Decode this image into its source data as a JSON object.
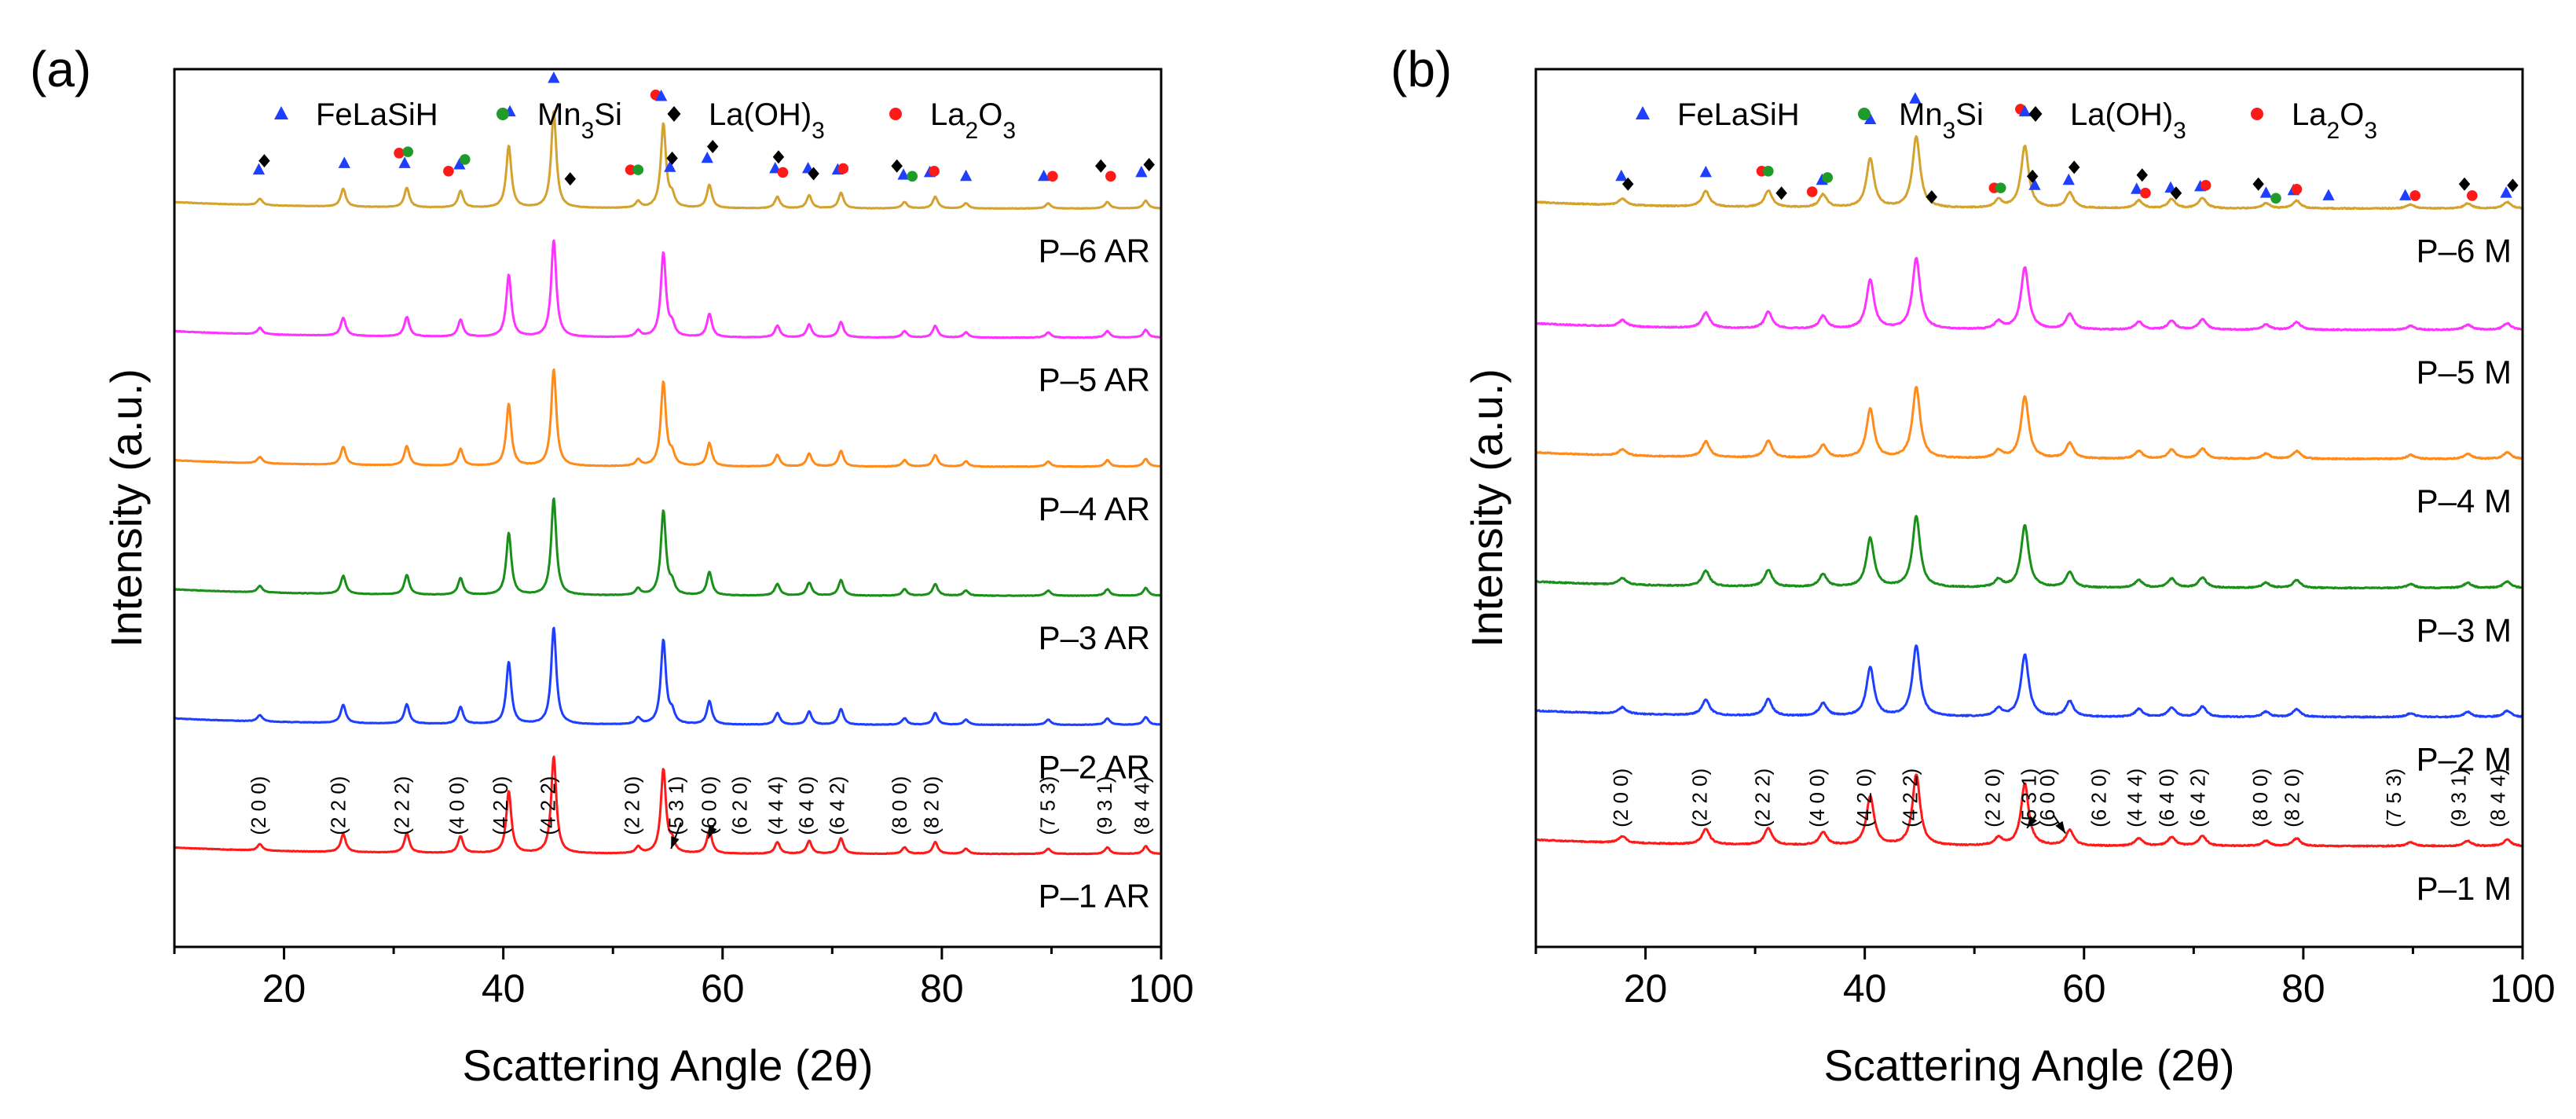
{
  "chart_data": [
    {
      "type": "line",
      "panel_label": "(a)",
      "xlabel": "Scattering Angle (2θ)",
      "ylabel": "Intensity (a.u.)",
      "xlim": [
        10,
        100
      ],
      "ylim": [
        0,
        6.8
      ],
      "xticks": [
        20,
        40,
        60,
        80,
        100
      ],
      "yticks": [],
      "peak_width": 0.28,
      "noise": 0.004,
      "legend": [
        {
          "symbol": "triangle",
          "color": "#1f3fff",
          "label": "FeLaSiH"
        },
        {
          "symbol": "circle",
          "color": "#1f9b2a",
          "label": "Mn3Si"
        },
        {
          "symbol": "diamond",
          "color": "#000000",
          "label": "La(OH)3"
        },
        {
          "symbol": "circle",
          "color": "#ff1a1a",
          "label": "La2O3"
        }
      ],
      "series": [
        {
          "name": "P–1 AR",
          "color": "#ff1a1a",
          "offset": 0.72
        },
        {
          "name": "P–2 AR",
          "color": "#1f3fff",
          "offset": 1.72
        },
        {
          "name": "P–3 AR",
          "color": "#1a8f1a",
          "offset": 2.72
        },
        {
          "name": "P–4 AR",
          "color": "#ff8c1a",
          "offset": 3.72
        },
        {
          "name": "P–5 AR",
          "color": "#ff33ff",
          "offset": 4.72
        },
        {
          "name": "P–6 AR",
          "color": "#d4a22e",
          "offset": 5.72
        }
      ],
      "peaks": [
        {
          "x": 17.8,
          "h": 0.05
        },
        {
          "x": 25.4,
          "h": 0.14
        },
        {
          "x": 31.2,
          "h": 0.15
        },
        {
          "x": 36.1,
          "h": 0.13
        },
        {
          "x": 40.5,
          "h": 0.48
        },
        {
          "x": 44.6,
          "h": 0.75
        },
        {
          "x": 52.3,
          "h": 0.05
        },
        {
          "x": 54.6,
          "h": 0.65
        },
        {
          "x": 55.4,
          "h": 0.08
        },
        {
          "x": 58.8,
          "h": 0.18
        },
        {
          "x": 65.0,
          "h": 0.09
        },
        {
          "x": 67.9,
          "h": 0.1
        },
        {
          "x": 70.8,
          "h": 0.12
        },
        {
          "x": 76.6,
          "h": 0.05
        },
        {
          "x": 79.4,
          "h": 0.09
        },
        {
          "x": 82.2,
          "h": 0.04
        },
        {
          "x": 89.7,
          "h": 0.04
        },
        {
          "x": 95.1,
          "h": 0.05
        },
        {
          "x": 98.6,
          "h": 0.06
        }
      ],
      "phase_markers": [
        {
          "x": 17.7,
          "y": 6.02,
          "phase": "FeLaSiH"
        },
        {
          "x": 18.2,
          "y": 6.09,
          "phase": "La(OH)3"
        },
        {
          "x": 25.5,
          "y": 6.07,
          "phase": "FeLaSiH"
        },
        {
          "x": 30.5,
          "y": 6.15,
          "phase": "La2O3"
        },
        {
          "x": 31.3,
          "y": 6.16,
          "phase": "Mn3Si"
        },
        {
          "x": 31.0,
          "y": 6.07,
          "phase": "FeLaSiH"
        },
        {
          "x": 35.0,
          "y": 6.01,
          "phase": "La2O3"
        },
        {
          "x": 36.0,
          "y": 6.06,
          "phase": "FeLaSiH"
        },
        {
          "x": 36.5,
          "y": 6.1,
          "phase": "Mn3Si"
        },
        {
          "x": 40.6,
          "y": 6.47,
          "phase": "FeLaSiH"
        },
        {
          "x": 44.6,
          "y": 6.73,
          "phase": "FeLaSiH"
        },
        {
          "x": 46.1,
          "y": 5.95,
          "phase": "La(OH)3"
        },
        {
          "x": 51.6,
          "y": 6.02,
          "phase": "La2O3"
        },
        {
          "x": 52.3,
          "y": 6.02,
          "phase": "Mn3Si"
        },
        {
          "x": 53.9,
          "y": 6.6,
          "phase": "La2O3"
        },
        {
          "x": 54.4,
          "y": 6.59,
          "phase": "FeLaSiH"
        },
        {
          "x": 55.2,
          "y": 6.04,
          "phase": "FeLaSiH"
        },
        {
          "x": 55.4,
          "y": 6.11,
          "phase": "La(OH)3"
        },
        {
          "x": 58.6,
          "y": 6.11,
          "phase": "FeLaSiH"
        },
        {
          "x": 59.1,
          "y": 6.2,
          "phase": "La(OH)3"
        },
        {
          "x": 64.8,
          "y": 6.03,
          "phase": "FeLaSiH"
        },
        {
          "x": 65.1,
          "y": 6.12,
          "phase": "La(OH)3"
        },
        {
          "x": 65.5,
          "y": 6.0,
          "phase": "La2O3"
        },
        {
          "x": 67.8,
          "y": 6.03,
          "phase": "FeLaSiH"
        },
        {
          "x": 68.3,
          "y": 5.99,
          "phase": "La(OH)3"
        },
        {
          "x": 70.5,
          "y": 6.02,
          "phase": "FeLaSiH"
        },
        {
          "x": 71.0,
          "y": 6.03,
          "phase": "La2O3"
        },
        {
          "x": 75.9,
          "y": 6.05,
          "phase": "La(OH)3"
        },
        {
          "x": 76.5,
          "y": 5.98,
          "phase": "FeLaSiH"
        },
        {
          "x": 77.3,
          "y": 5.97,
          "phase": "Mn3Si"
        },
        {
          "x": 78.9,
          "y": 6.0,
          "phase": "FeLaSiH"
        },
        {
          "x": 79.3,
          "y": 6.01,
          "phase": "La2O3"
        },
        {
          "x": 82.2,
          "y": 5.97,
          "phase": "FeLaSiH"
        },
        {
          "x": 89.3,
          "y": 5.97,
          "phase": "FeLaSiH"
        },
        {
          "x": 90.1,
          "y": 5.97,
          "phase": "La2O3"
        },
        {
          "x": 94.5,
          "y": 6.05,
          "phase": "La(OH)3"
        },
        {
          "x": 95.4,
          "y": 5.97,
          "phase": "La2O3"
        },
        {
          "x": 98.2,
          "y": 6.0,
          "phase": "FeLaSiH"
        },
        {
          "x": 98.9,
          "y": 6.06,
          "phase": "La(OH)3"
        }
      ],
      "hkl_labels": [
        {
          "x": 18.3,
          "text": "(2 0 0)"
        },
        {
          "x": 25.6,
          "text": "(2 2 0)"
        },
        {
          "x": 31.4,
          "text": "(2 2 2)"
        },
        {
          "x": 36.4,
          "text": "(4 0 0)"
        },
        {
          "x": 40.4,
          "text": "(4 2 0)"
        },
        {
          "x": 44.7,
          "text": "(4 2 2)"
        },
        {
          "x": 52.4,
          "text": "(2 2 0)"
        },
        {
          "x": 56.4,
          "text": "(5 3 1)"
        },
        {
          "x": 59.4,
          "text": "(6 0 0)"
        },
        {
          "x": 62.2,
          "text": "(6 2 0)"
        },
        {
          "x": 65.5,
          "text": "(4 4 4)"
        },
        {
          "x": 68.3,
          "text": "(6 4 0)"
        },
        {
          "x": 71.1,
          "text": "(6 4 2)"
        },
        {
          "x": 76.8,
          "text": "(8 0 0)"
        },
        {
          "x": 79.7,
          "text": "(8 2 0)"
        },
        {
          "x": 90.3,
          "text": "(7 5 3)"
        },
        {
          "x": 95.5,
          "text": "(9 3 1)"
        },
        {
          "x": 98.9,
          "text": "(8 4 4)"
        }
      ]
    },
    {
      "type": "line",
      "panel_label": "(b)",
      "xlabel": "Scattering Angle (2θ)",
      "ylabel": "Intensity (a.u.)",
      "xlim": [
        10,
        100
      ],
      "ylim": [
        0,
        6.8
      ],
      "xticks": [
        20,
        40,
        60,
        80,
        100
      ],
      "yticks": [],
      "peak_width": 0.42,
      "noise": 0.008,
      "legend": [
        {
          "symbol": "triangle",
          "color": "#1f3fff",
          "label": "FeLaSiH"
        },
        {
          "symbol": "circle",
          "color": "#1f9b2a",
          "label": "Mn3Si"
        },
        {
          "symbol": "diamond",
          "color": "#000000",
          "label": "La(OH)3"
        },
        {
          "symbol": "circle",
          "color": "#ff1a1a",
          "label": "La2O3"
        }
      ],
      "series": [
        {
          "name": "P–1 M",
          "color": "#ff1a1a",
          "offset": 0.78
        },
        {
          "name": "P–2 M",
          "color": "#1f3fff",
          "offset": 1.78
        },
        {
          "name": "P–3 M",
          "color": "#1a8f1a",
          "offset": 2.78
        },
        {
          "name": "P–4 M",
          "color": "#ff8c1a",
          "offset": 3.78
        },
        {
          "name": "P–5 M",
          "color": "#ff33ff",
          "offset": 4.78
        },
        {
          "name": "P–6 M",
          "color": "#d4a22e",
          "offset": 5.72
        }
      ],
      "peaks": [
        {
          "x": 17.9,
          "h": 0.05
        },
        {
          "x": 25.5,
          "h": 0.12
        },
        {
          "x": 31.2,
          "h": 0.13
        },
        {
          "x": 36.2,
          "h": 0.1
        },
        {
          "x": 40.5,
          "h": 0.38
        },
        {
          "x": 44.7,
          "h": 0.55
        },
        {
          "x": 52.2,
          "h": 0.06
        },
        {
          "x": 54.6,
          "h": 0.48
        },
        {
          "x": 58.7,
          "h": 0.12
        },
        {
          "x": 65.0,
          "h": 0.06
        },
        {
          "x": 68.0,
          "h": 0.07
        },
        {
          "x": 70.8,
          "h": 0.08
        },
        {
          "x": 76.6,
          "h": 0.04
        },
        {
          "x": 79.4,
          "h": 0.06
        },
        {
          "x": 89.8,
          "h": 0.03
        },
        {
          "x": 95.0,
          "h": 0.04
        },
        {
          "x": 98.6,
          "h": 0.05
        }
      ],
      "phase_markers": [
        {
          "x": 17.8,
          "y": 5.97,
          "phase": "FeLaSiH"
        },
        {
          "x": 18.4,
          "y": 5.91,
          "phase": "La(OH)3"
        },
        {
          "x": 25.5,
          "y": 6.0,
          "phase": "FeLaSiH"
        },
        {
          "x": 30.6,
          "y": 6.01,
          "phase": "La2O3"
        },
        {
          "x": 31.2,
          "y": 6.01,
          "phase": "Mn3Si"
        },
        {
          "x": 32.4,
          "y": 5.84,
          "phase": "La(OH)3"
        },
        {
          "x": 35.2,
          "y": 5.85,
          "phase": "La2O3"
        },
        {
          "x": 36.1,
          "y": 5.94,
          "phase": "FeLaSiH"
        },
        {
          "x": 36.6,
          "y": 5.96,
          "phase": "Mn3Si"
        },
        {
          "x": 40.5,
          "y": 6.41,
          "phase": "FeLaSiH"
        },
        {
          "x": 44.6,
          "y": 6.57,
          "phase": "FeLaSiH"
        },
        {
          "x": 46.1,
          "y": 5.81,
          "phase": "La(OH)3"
        },
        {
          "x": 51.8,
          "y": 5.88,
          "phase": "La2O3"
        },
        {
          "x": 52.4,
          "y": 5.88,
          "phase": "Mn3Si"
        },
        {
          "x": 54.2,
          "y": 6.49,
          "phase": "La2O3"
        },
        {
          "x": 54.6,
          "y": 6.47,
          "phase": "FeLaSiH"
        },
        {
          "x": 55.5,
          "y": 5.9,
          "phase": "FeLaSiH"
        },
        {
          "x": 55.3,
          "y": 5.97,
          "phase": "La(OH)3"
        },
        {
          "x": 58.6,
          "y": 5.94,
          "phase": "FeLaSiH"
        },
        {
          "x": 59.1,
          "y": 6.04,
          "phase": "La(OH)3"
        },
        {
          "x": 64.8,
          "y": 5.87,
          "phase": "FeLaSiH"
        },
        {
          "x": 65.3,
          "y": 5.98,
          "phase": "La(OH)3"
        },
        {
          "x": 65.6,
          "y": 5.84,
          "phase": "La2O3"
        },
        {
          "x": 67.9,
          "y": 5.88,
          "phase": "FeLaSiH"
        },
        {
          "x": 68.4,
          "y": 5.84,
          "phase": "La(OH)3"
        },
        {
          "x": 70.6,
          "y": 5.89,
          "phase": "FeLaSiH"
        },
        {
          "x": 71.1,
          "y": 5.9,
          "phase": "La2O3"
        },
        {
          "x": 75.9,
          "y": 5.91,
          "phase": "La(OH)3"
        },
        {
          "x": 76.6,
          "y": 5.84,
          "phase": "FeLaSiH"
        },
        {
          "x": 77.5,
          "y": 5.8,
          "phase": "Mn3Si"
        },
        {
          "x": 79.1,
          "y": 5.86,
          "phase": "FeLaSiH"
        },
        {
          "x": 79.4,
          "y": 5.87,
          "phase": "La2O3"
        },
        {
          "x": 82.3,
          "y": 5.82,
          "phase": "FeLaSiH"
        },
        {
          "x": 89.3,
          "y": 5.82,
          "phase": "FeLaSiH"
        },
        {
          "x": 90.2,
          "y": 5.82,
          "phase": "La2O3"
        },
        {
          "x": 94.7,
          "y": 5.91,
          "phase": "La(OH)3"
        },
        {
          "x": 95.4,
          "y": 5.82,
          "phase": "La2O3"
        },
        {
          "x": 98.5,
          "y": 5.84,
          "phase": "FeLaSiH"
        },
        {
          "x": 99.1,
          "y": 5.9,
          "phase": "La(OH)3"
        }
      ],
      "hkl_labels": [
        {
          "x": 18.4,
          "text": "(2 0 0)"
        },
        {
          "x": 25.6,
          "text": "(2 2 0)"
        },
        {
          "x": 31.3,
          "text": "(2 2 2)"
        },
        {
          "x": 36.3,
          "text": "(4 0 0)"
        },
        {
          "x": 40.6,
          "text": "(4 2 0)"
        },
        {
          "x": 44.8,
          "text": "(4 2 2)"
        },
        {
          "x": 52.3,
          "text": "(2 2 0)"
        },
        {
          "x": 55.6,
          "text": "(5 3 1)"
        },
        {
          "x": 57.3,
          "text": "(6 0 0)"
        },
        {
          "x": 62.0,
          "text": "(6 2 0)"
        },
        {
          "x": 65.3,
          "text": "(4 4 4)"
        },
        {
          "x": 68.2,
          "text": "(6 4 0)"
        },
        {
          "x": 71.0,
          "text": "(6 4 2)"
        },
        {
          "x": 76.7,
          "text": "(8 0 0)"
        },
        {
          "x": 79.6,
          "text": "(8 2 0)"
        },
        {
          "x": 88.9,
          "text": "(7 5 3)"
        },
        {
          "x": 94.8,
          "text": "(9 3 1)"
        },
        {
          "x": 98.4,
          "text": "(8 4 4)"
        }
      ]
    }
  ],
  "colors": {
    "axis": "#000000",
    "background": "#ffffff"
  }
}
